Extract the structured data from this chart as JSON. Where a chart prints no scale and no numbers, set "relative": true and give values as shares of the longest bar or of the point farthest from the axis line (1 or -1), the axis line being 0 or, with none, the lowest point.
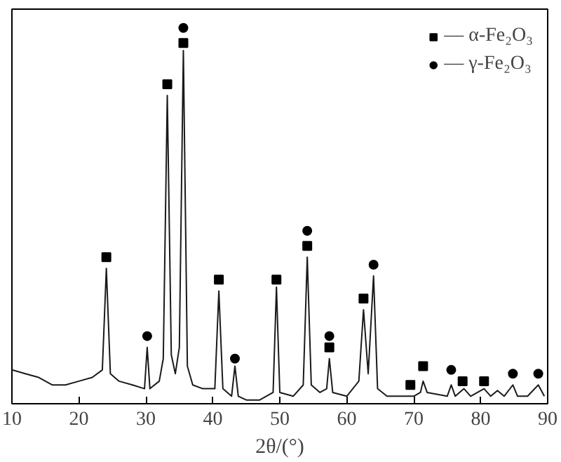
{
  "chart_data": {
    "type": "line",
    "relative": true,
    "xlabel": "2θ/(°)",
    "xlim": [
      10,
      90
    ],
    "xticks": [
      10,
      20,
      30,
      40,
      50,
      60,
      70,
      80,
      90
    ],
    "tick_labels": "x",
    "grid": false,
    "legend": "top right",
    "series": [
      {
        "color": "#1a1a1a",
        "x": [
          10,
          12,
          14,
          16,
          18,
          20,
          22,
          23.5,
          24.1,
          24.7,
          26,
          28,
          29.8,
          30.2,
          30.6,
          32,
          32.6,
          33.2,
          33.8,
          34.4,
          35.0,
          35.6,
          36.2,
          37,
          38.5,
          40.3,
          40.9,
          41.5,
          42.8,
          43.3,
          43.8,
          45,
          47,
          49,
          49.5,
          50,
          52,
          53.5,
          54.1,
          54.7,
          56,
          57.0,
          57.4,
          57.9,
          60,
          61.8,
          62.5,
          63.2,
          64.0,
          64.6,
          66,
          68,
          70,
          71,
          71.4,
          72,
          75,
          75.6,
          76.2,
          77.5,
          78.5,
          80.5,
          81.5,
          82.5,
          83.5,
          84.8,
          85.5,
          87,
          88.6,
          89.5
        ],
        "values": [
          0.09,
          0.08,
          0.07,
          0.05,
          0.05,
          0.06,
          0.07,
          0.09,
          0.36,
          0.08,
          0.06,
          0.05,
          0.04,
          0.15,
          0.04,
          0.06,
          0.12,
          0.82,
          0.13,
          0.08,
          0.15,
          0.94,
          0.1,
          0.05,
          0.04,
          0.04,
          0.3,
          0.04,
          0.02,
          0.1,
          0.02,
          0.01,
          0.01,
          0.03,
          0.31,
          0.03,
          0.02,
          0.05,
          0.39,
          0.05,
          0.03,
          0.04,
          0.12,
          0.03,
          0.02,
          0.06,
          0.25,
          0.08,
          0.34,
          0.04,
          0.02,
          0.02,
          0.02,
          0.03,
          0.06,
          0.03,
          0.02,
          0.05,
          0.02,
          0.04,
          0.02,
          0.04,
          0.02,
          0.035,
          0.02,
          0.05,
          0.02,
          0.02,
          0.05,
          0.02
        ]
      },
      {
        "type": "scatter",
        "marker": "square",
        "name": "— α-Fe₂O₃",
        "color": "#000000",
        "x": [
          24.1,
          33.2,
          35.6,
          40.9,
          49.5,
          54.1,
          57.4,
          62.5,
          69.5,
          71.4,
          77.3,
          80.5
        ],
        "values": [
          0.39,
          0.85,
          0.96,
          0.33,
          0.33,
          0.42,
          0.15,
          0.28,
          0.05,
          0.1,
          0.06,
          0.06
        ]
      },
      {
        "type": "scatter",
        "marker": "circle",
        "name": "— γ-Fe₂O₃",
        "color": "#000000",
        "x": [
          30.2,
          35.6,
          43.3,
          54.1,
          57.4,
          64.0,
          75.6,
          84.8,
          88.6
        ],
        "values": [
          0.18,
          1.0,
          0.12,
          0.46,
          0.18,
          0.37,
          0.09,
          0.08,
          0.08
        ]
      }
    ]
  }
}
